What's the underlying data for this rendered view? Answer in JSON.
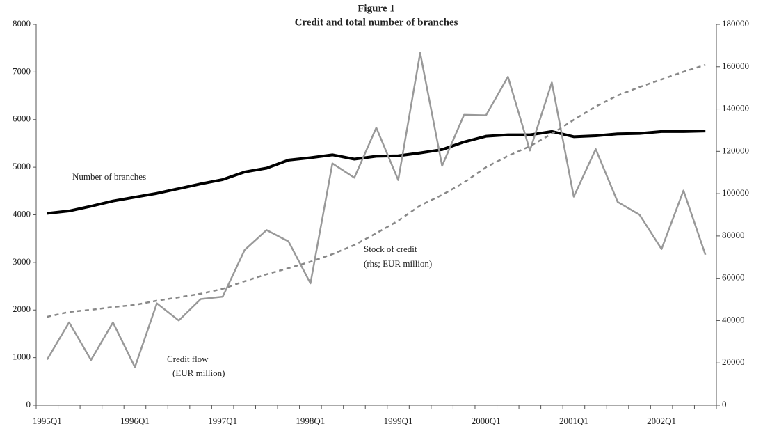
{
  "chart_data": {
    "type": "line",
    "title": "Figure 1",
    "subtitle": "Credit and total number of branches",
    "categories": [
      "1995Q1",
      null,
      null,
      null,
      "1996Q1",
      null,
      null,
      null,
      "1997Q1",
      null,
      null,
      null,
      "1998Q1",
      null,
      null,
      null,
      "1999Q1",
      null,
      null,
      null,
      "2000Q1",
      null,
      null,
      null,
      "2001Q1",
      null,
      null,
      null,
      "2002Q1",
      null,
      null
    ],
    "series": [
      {
        "name": "Number of branches",
        "color": "#000000",
        "width": 4,
        "dashed": false,
        "values": [
          4030,
          4080,
          4180,
          4290,
          4370,
          4450,
          4550,
          4650,
          4740,
          4900,
          4980,
          5150,
          5200,
          5260,
          5170,
          5230,
          5240,
          5300,
          5370,
          5530,
          5650,
          5680,
          5680,
          5750,
          5640,
          5660,
          5700,
          5710,
          5750,
          5750,
          5760
        ]
      },
      {
        "name": "Credit flow",
        "color": "#999999",
        "width": 2.5,
        "dashed": false,
        "values": [
          960,
          1740,
          950,
          1740,
          800,
          2140,
          1780,
          2230,
          2280,
          3260,
          3680,
          3440,
          2560,
          5080,
          4780,
          5830,
          4730,
          7400,
          5030,
          6100,
          6090,
          6900,
          5350,
          6780,
          4380,
          5380,
          4270,
          4000,
          3280,
          4510,
          3160
        ]
      },
      {
        "name": "Stock of credit",
        "color": "#888888",
        "width": 2.5,
        "dashed": true,
        "axis": "y2",
        "values": [
          41800,
          44100,
          45100,
          46400,
          47400,
          49400,
          51000,
          52700,
          55000,
          58600,
          61900,
          64800,
          67800,
          71400,
          75700,
          81300,
          87200,
          94400,
          99400,
          105300,
          112500,
          117800,
          122400,
          128300,
          134900,
          141200,
          146400,
          150400,
          154000,
          157600,
          160900
        ]
      }
    ],
    "annotations": [
      "Number of branches",
      "Stock of credit",
      "(rhs; EUR million)",
      "Credit flow",
      "(EUR million)"
    ],
    "ylim": [
      0,
      8000
    ],
    "yticks": [
      0,
      1000,
      2000,
      3000,
      4000,
      5000,
      6000,
      7000,
      8000
    ],
    "y2lim": [
      0,
      180000
    ],
    "y2ticks": [
      0,
      20000,
      40000,
      60000,
      80000,
      100000,
      120000,
      140000,
      160000,
      180000
    ]
  }
}
